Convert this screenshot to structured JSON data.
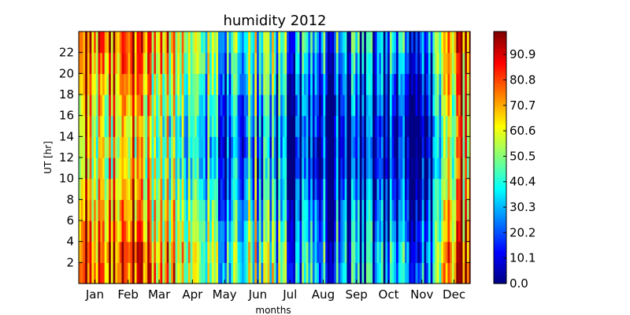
{
  "chart_data": {
    "type": "heatmap",
    "title": "humidity 2012",
    "xlabel": "months",
    "ylabel": "UT [hr]",
    "x_ticks": [
      "Jan",
      "Feb",
      "Mar",
      "Apr",
      "May",
      "Jun",
      "Jul",
      "Aug",
      "Sep",
      "Oct",
      "Nov",
      "Dec"
    ],
    "y_ticks": [
      2,
      4,
      6,
      8,
      10,
      12,
      14,
      16,
      18,
      20,
      22
    ],
    "ylim": [
      0,
      24
    ],
    "xlim_days": [
      1,
      366
    ],
    "colorbar": {
      "min": 0.0,
      "max": 100,
      "ticks": [
        0.0,
        10.1,
        20.2,
        30.3,
        40.4,
        50.5,
        60.6,
        70.7,
        80.8,
        90.9
      ],
      "tick_labels": [
        "0.0",
        "10.1",
        "20.2",
        "30.3",
        "40.4",
        "50.5",
        "60.6",
        "70.7",
        "80.8",
        "90.9"
      ],
      "colormap": "jet"
    },
    "monthly_mean_humidity": [
      {
        "month": "Jan",
        "value": 80
      },
      {
        "month": "Feb",
        "value": 85
      },
      {
        "month": "Mar",
        "value": 65
      },
      {
        "month": "Apr",
        "value": 45
      },
      {
        "month": "May",
        "value": 35
      },
      {
        "month": "Jun",
        "value": 40
      },
      {
        "month": "Jul",
        "value": 20
      },
      {
        "month": "Aug",
        "value": 18
      },
      {
        "month": "Sep",
        "value": 15
      },
      {
        "month": "Oct",
        "value": 14
      },
      {
        "month": "Nov",
        "value": 13
      },
      {
        "month": "Dec",
        "value": 60
      }
    ]
  }
}
